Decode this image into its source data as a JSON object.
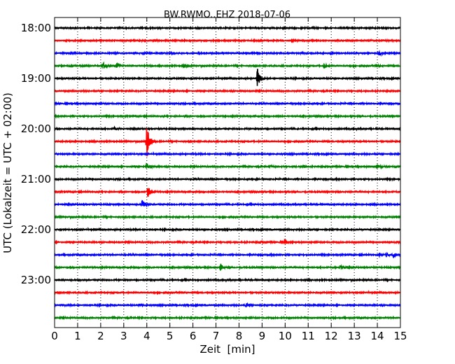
{
  "chart_data": {
    "type": "line",
    "title": "BW.RWMO..EHZ 2018-07-06",
    "xlabel": "Zeit  [min]",
    "ylabel": "UTC (Lokalzeit = UTC + 02:00)",
    "xlim": [
      0,
      15
    ],
    "x_ticks": [
      "0",
      "1",
      "2",
      "3",
      "4",
      "5",
      "6",
      "7",
      "8",
      "9",
      "10",
      "11",
      "12",
      "13",
      "14",
      "15"
    ],
    "y_ticks": [
      "18:00",
      "19:00",
      "20:00",
      "21:00",
      "22:00",
      "23:00"
    ],
    "grid": "vertical-dotted",
    "trace_colors": [
      "#000000",
      "#ff0000",
      "#0000ff",
      "#008000"
    ],
    "traces": [
      {
        "start": "18:00",
        "events": []
      },
      {
        "start": "18:15",
        "events": []
      },
      {
        "start": "18:30",
        "events": [
          {
            "t": 14.1,
            "amp": 0.35
          }
        ]
      },
      {
        "start": "18:45",
        "events": [
          {
            "t": 2.1,
            "amp": 0.55
          },
          {
            "t": 2.7,
            "amp": 0.4
          },
          {
            "t": 5.6,
            "amp": 0.3
          },
          {
            "t": 11.7,
            "amp": 0.45
          },
          {
            "t": 14.0,
            "amp": 0.2
          }
        ]
      },
      {
        "start": "19:00",
        "events": [
          {
            "t": 8.8,
            "amp": 1.5
          }
        ]
      },
      {
        "start": "19:15",
        "events": []
      },
      {
        "start": "19:30",
        "events": []
      },
      {
        "start": "19:45",
        "events": []
      },
      {
        "start": "20:00",
        "events": [
          {
            "t": 2.6,
            "amp": 0.2
          }
        ]
      },
      {
        "start": "20:15",
        "events": [
          {
            "t": 4.0,
            "amp": 2.8
          }
        ]
      },
      {
        "start": "20:30",
        "events": []
      },
      {
        "start": "20:45",
        "events": [
          {
            "t": 4.0,
            "amp": 0.5
          },
          {
            "t": 9.4,
            "amp": 0.2
          },
          {
            "t": 10.8,
            "amp": 0.25
          },
          {
            "t": 14.0,
            "amp": 0.45
          },
          {
            "t": 14.8,
            "amp": 0.2
          }
        ]
      },
      {
        "start": "21:00",
        "events": []
      },
      {
        "start": "21:15",
        "events": [
          {
            "t": 4.05,
            "amp": 0.95
          }
        ]
      },
      {
        "start": "21:30",
        "events": [
          {
            "t": 3.8,
            "amp": 0.9
          }
        ]
      },
      {
        "start": "21:45",
        "events": []
      },
      {
        "start": "22:00",
        "events": []
      },
      {
        "start": "22:15",
        "events": [
          {
            "t": 8.9,
            "amp": 0.2
          },
          {
            "t": 10.0,
            "amp": 0.5
          }
        ]
      },
      {
        "start": "22:30",
        "events": [
          {
            "t": 14.1,
            "amp": 0.3
          },
          {
            "t": 14.4,
            "amp": 0.35
          },
          {
            "t": 14.7,
            "amp": 0.3
          }
        ]
      },
      {
        "start": "22:45",
        "events": [
          {
            "t": 7.2,
            "amp": 0.55
          },
          {
            "t": 12.4,
            "amp": 0.3
          }
        ]
      },
      {
        "start": "23:00",
        "events": []
      },
      {
        "start": "23:15",
        "events": []
      },
      {
        "start": "23:30",
        "events": [
          {
            "t": 3.7,
            "amp": 0.2
          },
          {
            "t": 8.3,
            "amp": 0.3
          }
        ]
      },
      {
        "start": "23:45",
        "events": []
      }
    ]
  }
}
